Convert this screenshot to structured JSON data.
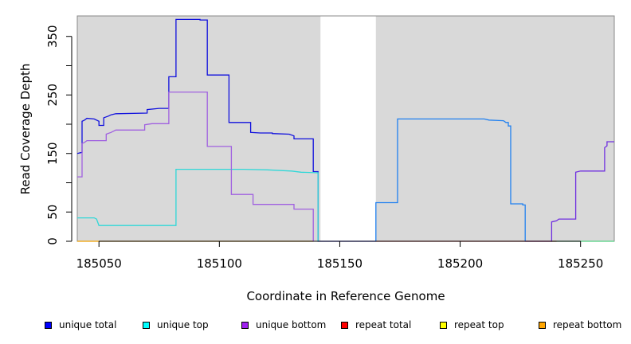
{
  "chart_data": {
    "type": "line",
    "title": "",
    "xlabel": "Coordinate in Reference Genome",
    "ylabel": "Read Coverage Depth",
    "xlim": [
      185041,
      185264
    ],
    "ylim": [
      0,
      385
    ],
    "xticks": [
      185050,
      185100,
      185150,
      185200,
      185250
    ],
    "yticks": [
      0,
      50,
      150,
      250,
      350
    ],
    "background_bands": [
      [
        185041,
        185142
      ],
      [
        185165,
        185264
      ]
    ],
    "background_color": "#d9d9d9",
    "legend_position": "bottom",
    "series": [
      {
        "name": "unique total",
        "color": "#1010dd",
        "points": [
          [
            185041,
            150
          ],
          [
            185043,
            152
          ],
          [
            185043,
            205
          ],
          [
            185044,
            207
          ],
          [
            185045,
            210
          ],
          [
            185048,
            209
          ],
          [
            185050,
            205
          ],
          [
            185050,
            198
          ],
          [
            185052,
            198
          ],
          [
            185052,
            211
          ],
          [
            185054,
            214
          ],
          [
            185055,
            216
          ],
          [
            185057,
            218
          ],
          [
            185070,
            219
          ],
          [
            185070,
            225
          ],
          [
            185075,
            227
          ],
          [
            185079,
            227
          ],
          [
            185079,
            281
          ],
          [
            185082,
            281
          ],
          [
            185082,
            379
          ],
          [
            185092,
            379
          ],
          [
            185092,
            378
          ],
          [
            185095,
            378
          ],
          [
            185095,
            284
          ],
          [
            185104,
            284
          ],
          [
            185104,
            203
          ],
          [
            185113,
            203
          ],
          [
            185113,
            186
          ],
          [
            185117,
            185
          ],
          [
            185122,
            185
          ],
          [
            185122,
            184
          ],
          [
            185129,
            183
          ],
          [
            185131,
            180
          ],
          [
            185131,
            175
          ],
          [
            185139,
            175
          ],
          [
            185139,
            119
          ],
          [
            185141,
            119
          ],
          [
            185141,
            0
          ],
          [
            185165,
            0
          ]
        ]
      },
      {
        "name": "unique top",
        "color": "#30d8d8",
        "points": [
          [
            185041,
            40
          ],
          [
            185048,
            40
          ],
          [
            185049,
            38
          ],
          [
            185050,
            27
          ],
          [
            185082,
            27
          ],
          [
            185082,
            123
          ],
          [
            185110,
            123
          ],
          [
            185120,
            122
          ],
          [
            185130,
            120
          ],
          [
            185134,
            118
          ],
          [
            185141,
            117
          ],
          [
            185141,
            0
          ]
        ]
      },
      {
        "name": "unique bottom",
        "color": "#a060e0",
        "points": [
          [
            185041,
            110
          ],
          [
            185043,
            110
          ],
          [
            185043,
            167
          ],
          [
            185044,
            169
          ],
          [
            185045,
            172
          ],
          [
            185053,
            172
          ],
          [
            185053,
            183
          ],
          [
            185055,
            186
          ],
          [
            185057,
            190
          ],
          [
            185069,
            190
          ],
          [
            185069,
            199
          ],
          [
            185072,
            201
          ],
          [
            185079,
            201
          ],
          [
            185079,
            255
          ],
          [
            185095,
            255
          ],
          [
            185095,
            162
          ],
          [
            185105,
            162
          ],
          [
            185105,
            80
          ],
          [
            185114,
            80
          ],
          [
            185114,
            63
          ],
          [
            185131,
            63
          ],
          [
            185131,
            55
          ],
          [
            185139,
            55
          ],
          [
            185139,
            0
          ]
        ]
      },
      {
        "name": "unique total",
        "color": "#2080f0",
        "points": [
          [
            185165,
            0
          ],
          [
            185165,
            66
          ],
          [
            185174,
            66
          ],
          [
            185174,
            209
          ],
          [
            185176,
            209
          ],
          [
            185199,
            209
          ],
          [
            185210,
            209
          ],
          [
            185212,
            207
          ],
          [
            185218,
            206
          ],
          [
            185219,
            203
          ],
          [
            185220,
            203
          ],
          [
            185220,
            197
          ],
          [
            185221,
            197
          ],
          [
            185221,
            64
          ],
          [
            185226,
            64
          ],
          [
            185226,
            62
          ],
          [
            185227,
            62
          ],
          [
            185227,
            0
          ]
        ]
      },
      {
        "name": "unique bottom",
        "color": "#7030e0",
        "points": [
          [
            185227,
            0
          ],
          [
            185238,
            0
          ],
          [
            185238,
            33
          ],
          [
            185240,
            35
          ],
          [
            185241,
            38
          ],
          [
            185248,
            38
          ],
          [
            185248,
            118
          ],
          [
            185250,
            120
          ],
          [
            185260,
            120
          ],
          [
            185260,
            160
          ],
          [
            185261,
            163
          ],
          [
            185261,
            170
          ],
          [
            185264,
            170
          ]
        ]
      },
      {
        "name": "unique top",
        "color": "#50d080",
        "points": [
          [
            185238,
            0
          ],
          [
            185264,
            0
          ]
        ]
      },
      {
        "name": "repeat bottom",
        "color": "#f0a000",
        "points": [
          [
            185041,
            0
          ],
          [
            185139,
            0
          ]
        ]
      },
      {
        "name": "repeat total",
        "color": "#e04040",
        "points": [
          [
            185165,
            0
          ],
          [
            185240,
            0
          ]
        ]
      }
    ]
  },
  "legend": [
    {
      "label": "unique total",
      "color": "#0000ff"
    },
    {
      "label": "unique top",
      "color": "#00ffff"
    },
    {
      "label": "unique bottom",
      "color": "#a020f0"
    },
    {
      "label": "repeat total",
      "color": "#ff0000"
    },
    {
      "label": "repeat top",
      "color": "#ffff00"
    },
    {
      "label": "repeat bottom",
      "color": "#ffa500"
    }
  ]
}
